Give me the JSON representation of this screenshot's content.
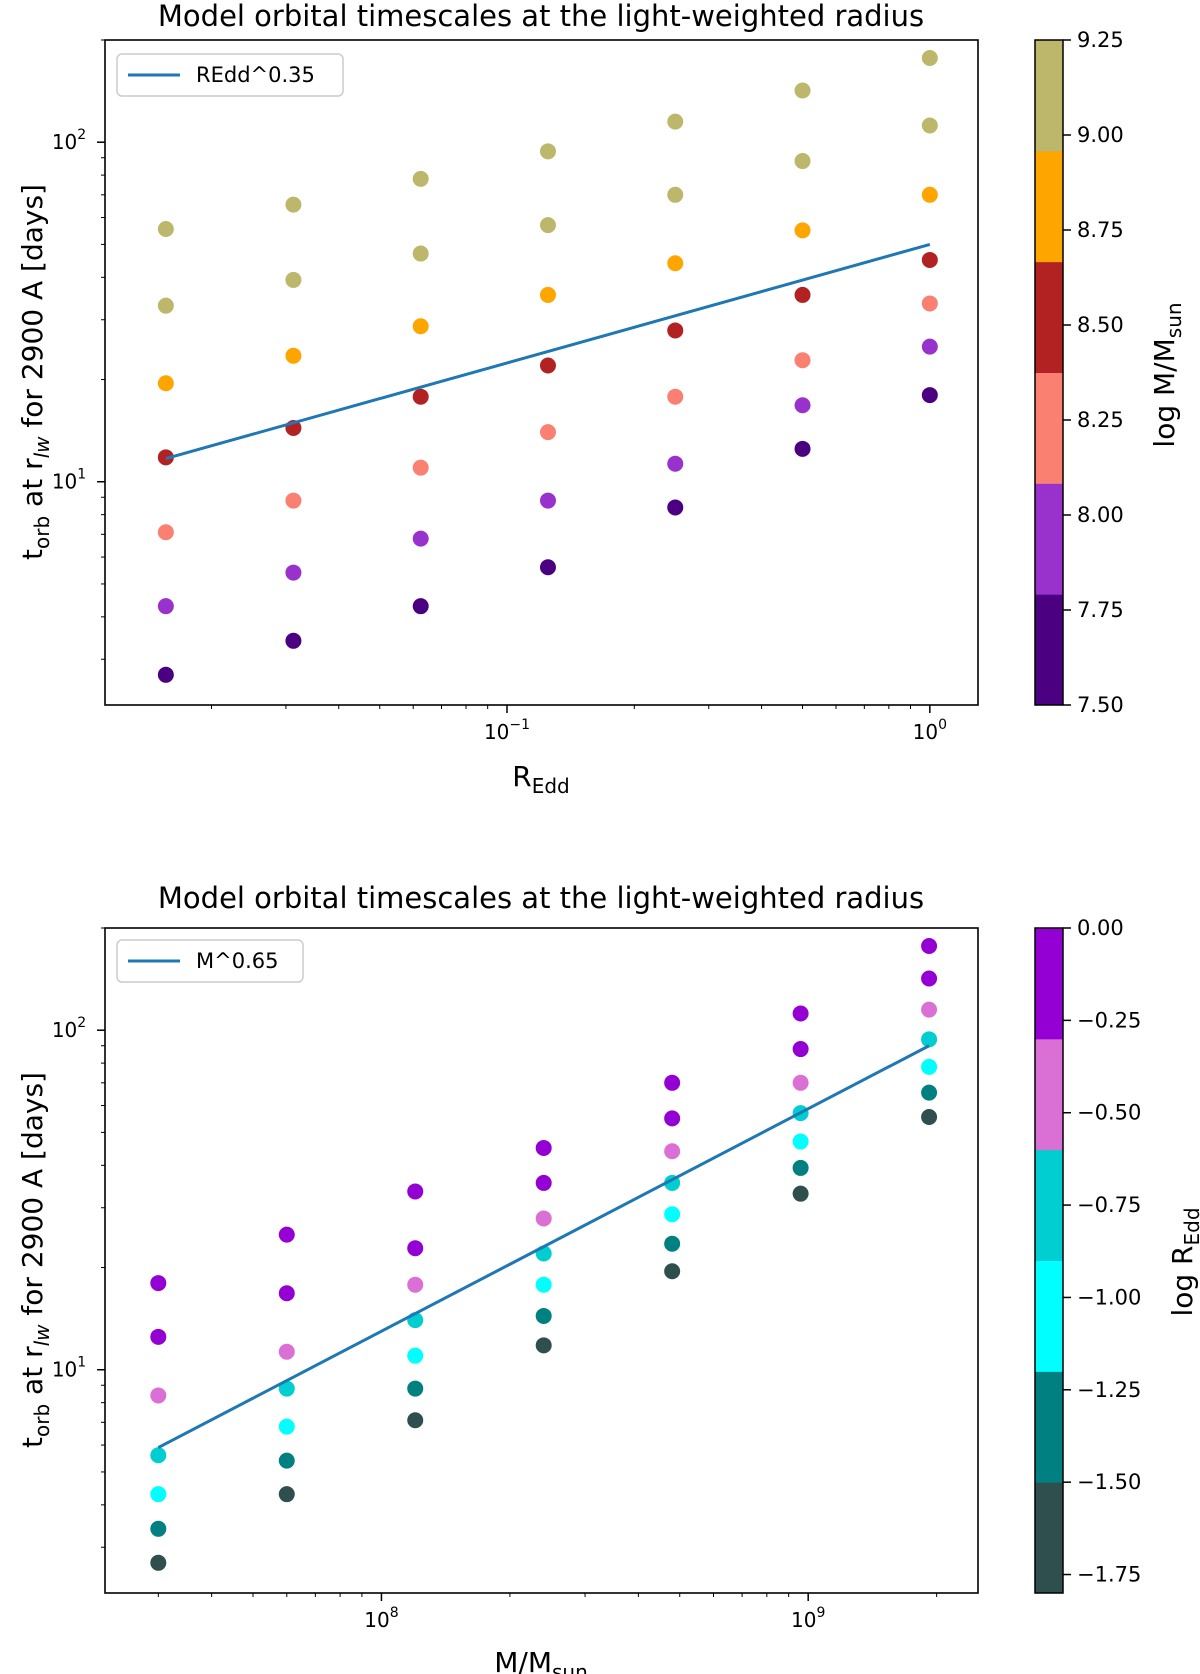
{
  "chart_data": [
    {
      "type": "scatter",
      "title": "Model orbital timescales at the light-weighted radius",
      "ylabel": "t_orb at r_lw for 2900 A [days]",
      "ylabel_parts": {
        "main": "t",
        "sub": "orb",
        "mid": " at r",
        "sub2": "lw",
        "rest": " for 2900 A [days]"
      },
      "xlabel": "R_Edd",
      "xlabel_parts": {
        "main": "R",
        "sub": "Edd"
      },
      "xscale": "log",
      "yscale": "log",
      "xlim": [
        0.0112,
        1.3
      ],
      "ylim": [
        2.2,
        200
      ],
      "x_ticks": [
        {
          "value": 0.1,
          "base": "10",
          "exp": "−1"
        },
        {
          "value": 1,
          "base": "10",
          "exp": "0"
        }
      ],
      "y_ticks": [
        {
          "value": 10,
          "base": "10",
          "exp": "1"
        },
        {
          "value": 100,
          "base": "10",
          "exp": "2"
        }
      ],
      "legend": {
        "label": "REdd^0.35",
        "location": "upper-left"
      },
      "colorbar": {
        "label": "log M/M_sun",
        "label_parts": {
          "main": "log M/M",
          "sub": "sun"
        },
        "range": [
          7.5,
          9.25
        ],
        "colors": [
          "#4b0082",
          "#9932cc",
          "#fa8072",
          "#b22222",
          "#ffa500",
          "#bdb76b"
        ],
        "tick_values": [
          7.5,
          7.75,
          8.0,
          8.25,
          8.5,
          8.75,
          9.0,
          9.25
        ],
        "tick_labels": [
          "7.50",
          "7.75",
          "8.00",
          "8.25",
          "8.50",
          "8.75",
          "9.00",
          "9.25"
        ]
      },
      "fit_line": {
        "x": [
          0.0156,
          1.0
        ],
        "y": [
          11.7,
          50.0
        ],
        "color": "#1f77b4"
      },
      "series": [
        {
          "name": "log M 7.5",
          "color": "#4b0082",
          "x": [
            0.0156,
            0.03125,
            0.0625,
            0.125,
            0.25,
            0.5,
            1.0
          ],
          "y": [
            2.7,
            3.4,
            4.3,
            5.6,
            8.4,
            12.5,
            18.0
          ]
        },
        {
          "name": "log M 7.8",
          "color": "#9932cc",
          "x": [
            0.0156,
            0.03125,
            0.0625,
            0.125,
            0.25,
            0.5,
            1.0
          ],
          "y": [
            4.3,
            5.4,
            6.8,
            8.8,
            11.3,
            16.8,
            25.0
          ]
        },
        {
          "name": "log M 8.1",
          "color": "#fa8072",
          "x": [
            0.0156,
            0.03125,
            0.0625,
            0.125,
            0.25,
            0.5,
            1.0
          ],
          "y": [
            7.1,
            8.8,
            11.0,
            14.0,
            17.8,
            22.8,
            33.5
          ]
        },
        {
          "name": "log M 8.4",
          "color": "#b22222",
          "x": [
            0.0156,
            0.03125,
            0.0625,
            0.125,
            0.25,
            0.5,
            1.0
          ],
          "y": [
            11.8,
            14.4,
            17.8,
            22.0,
            27.9,
            35.5,
            45.0
          ]
        },
        {
          "name": "log M 8.7",
          "color": "#ffa500",
          "x": [
            0.0156,
            0.03125,
            0.0625,
            0.125,
            0.25,
            0.5,
            1.0
          ],
          "y": [
            19.5,
            23.5,
            28.7,
            35.5,
            44.0,
            55.0,
            70.0
          ]
        },
        {
          "name": "log M 9.0",
          "color": "#bdb76b",
          "x": [
            0.0156,
            0.03125,
            0.0625,
            0.125,
            0.25,
            0.5,
            1.0
          ],
          "y": [
            33.0,
            39.3,
            47.0,
            57.0,
            70.0,
            88.0,
            112.0
          ]
        },
        {
          "name": "log M 9.3",
          "color": "#bdb76b",
          "x": [
            0.0156,
            0.03125,
            0.0625,
            0.125,
            0.25,
            0.5,
            1.0
          ],
          "y": [
            55.5,
            65.5,
            78.0,
            94.0,
            115.0,
            142.0,
            177.0
          ]
        }
      ]
    },
    {
      "type": "scatter",
      "title": "Model orbital timescales at the light-weighted radius",
      "ylabel": "t_orb at r_lw for 2900 A [days]",
      "ylabel_parts": {
        "main": "t",
        "sub": "orb",
        "mid": " at r",
        "sub2": "lw",
        "rest": " for 2900 A [days]"
      },
      "xlabel": "M/M_sun",
      "xlabel_parts": {
        "main": "M/M",
        "sub": "sun"
      },
      "xscale": "log",
      "yscale": "log",
      "xlim": [
        22500000,
        2500000000
      ],
      "ylim": [
        2.2,
        200
      ],
      "x_ticks": [
        {
          "value": 100000000,
          "base": "10",
          "exp": "8"
        },
        {
          "value": 1000000000,
          "base": "10",
          "exp": "9"
        }
      ],
      "y_ticks": [
        {
          "value": 10,
          "base": "10",
          "exp": "1"
        },
        {
          "value": 100,
          "base": "10",
          "exp": "2"
        }
      ],
      "legend": {
        "label": "M^0.65",
        "location": "upper-left"
      },
      "colorbar": {
        "label": "log R_Edd",
        "label_parts": {
          "main": "log R",
          "sub": "Edd"
        },
        "range": [
          -1.8,
          0.0
        ],
        "colors": [
          "#2f4f4f",
          "#008080",
          "#00ffff",
          "#00ced1",
          "#da70d6",
          "#9400d3"
        ],
        "tick_values": [
          -1.75,
          -1.5,
          -1.25,
          -1.0,
          -0.75,
          -0.5,
          -0.25,
          0.0
        ],
        "tick_labels": [
          "−1.75",
          "−1.50",
          "−1.25",
          "−1.00",
          "−0.75",
          "−0.50",
          "−0.25",
          "0.00"
        ]
      },
      "fit_line": {
        "x": [
          30000000,
          1920000000
        ],
        "y": [
          5.9,
          90.0
        ],
        "color": "#1f77b4"
      },
      "series": [
        {
          "name": "log REdd -1.8",
          "color": "#2f4f4f",
          "x": [
            30000000,
            60000000,
            120000000,
            240000000,
            480000000,
            960000000,
            1920000000
          ],
          "y": [
            2.7,
            4.3,
            7.1,
            11.8,
            19.5,
            33.0,
            55.5
          ]
        },
        {
          "name": "log REdd -1.5",
          "color": "#008080",
          "x": [
            30000000,
            60000000,
            120000000,
            240000000,
            480000000,
            960000000,
            1920000000
          ],
          "y": [
            3.4,
            5.4,
            8.8,
            14.4,
            23.5,
            39.3,
            65.5
          ]
        },
        {
          "name": "log REdd -1.2",
          "color": "#00ffff",
          "x": [
            30000000,
            60000000,
            120000000,
            240000000,
            480000000,
            960000000,
            1920000000
          ],
          "y": [
            4.3,
            6.8,
            11.0,
            17.8,
            28.7,
            47.0,
            78.0
          ]
        },
        {
          "name": "log REdd -0.9",
          "color": "#00ced1",
          "x": [
            30000000,
            60000000,
            120000000,
            240000000,
            480000000,
            960000000,
            1920000000
          ],
          "y": [
            5.6,
            8.8,
            14.0,
            22.0,
            35.5,
            57.0,
            94.0
          ]
        },
        {
          "name": "log REdd -0.6",
          "color": "#da70d6",
          "x": [
            30000000,
            60000000,
            120000000,
            240000000,
            480000000,
            960000000,
            1920000000
          ],
          "y": [
            8.4,
            11.3,
            17.8,
            27.9,
            44.0,
            70.0,
            115.0
          ]
        },
        {
          "name": "log REdd -0.3",
          "color": "#9400d3",
          "x": [
            30000000,
            60000000,
            120000000,
            240000000,
            480000000,
            960000000,
            1920000000
          ],
          "y": [
            12.5,
            16.8,
            22.8,
            35.5,
            55.0,
            88.0,
            142.0
          ]
        },
        {
          "name": "log REdd 0.0",
          "color": "#9400d3",
          "x": [
            30000000,
            60000000,
            120000000,
            240000000,
            480000000,
            960000000,
            1920000000
          ],
          "y": [
            18.0,
            25.0,
            33.5,
            45.0,
            70.0,
            112.0,
            177.0
          ]
        }
      ]
    }
  ]
}
